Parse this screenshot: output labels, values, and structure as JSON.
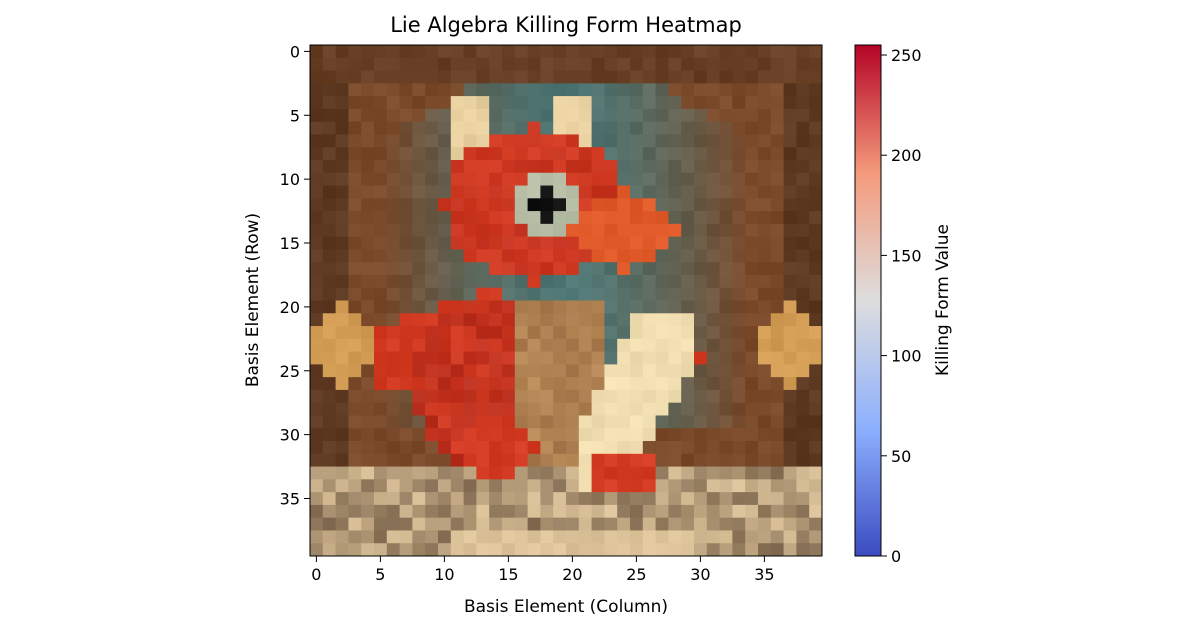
{
  "chart_data": {
    "type": "heatmap",
    "title": "Lie Algebra Killing Form Heatmap",
    "xlabel": "Basis Element (Column)",
    "ylabel": "Basis Element (Row)",
    "rows": 40,
    "cols": 40,
    "x_ticks": [
      0,
      5,
      10,
      15,
      20,
      25,
      30,
      35
    ],
    "y_ticks": [
      0,
      5,
      10,
      15,
      20,
      25,
      30,
      35
    ],
    "colorbar": {
      "label": "Killing Form Value",
      "colormap": "coolwarm",
      "range": [
        0,
        255
      ],
      "ticks": [
        0,
        50,
        100,
        150,
        200,
        250
      ]
    },
    "cell_rendering": "RGB image shown (pixel-art red dragon on a throne in an arched hall); cell colors come from the image, not the colorbar",
    "image_palette": {
      "background_arch": "#4e7674",
      "hall_brown": "#7a4a2a",
      "hall_dark": "#3a2416",
      "lamp_glow": "#e8b060",
      "dragon_red": "#d23a22",
      "dragon_dark_red": "#9c2218",
      "snout_orange": "#e05a2a",
      "horns_cream": "#e8cfa0",
      "belly_tan": "#b88a58",
      "scroll_cream": "#f0ddb0",
      "eye_light": "#b8c0a8",
      "pupil": "#121212",
      "floor_cream": "#dcc39a"
    }
  }
}
